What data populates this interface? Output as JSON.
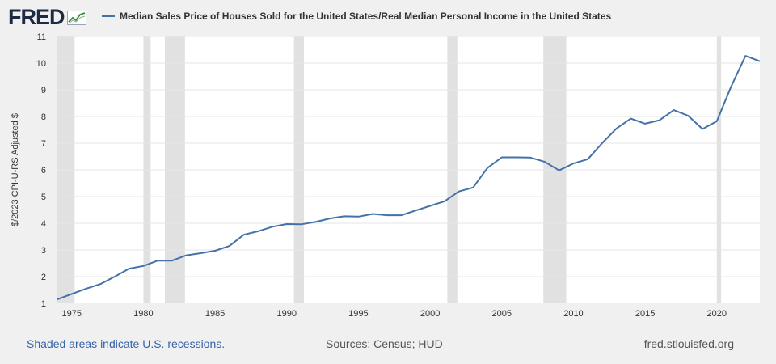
{
  "brand": {
    "logo_text": "FRED"
  },
  "footer": {
    "recession_note": "Shaded areas indicate U.S. recessions.",
    "sources": "Sources: Census; HUD",
    "site": "fred.stlouisfed.org"
  },
  "colors": {
    "line": "#4472a8",
    "recession": "#e1e1e1",
    "grid": "#e6e6e6",
    "background": "#ffffff"
  },
  "chart_data": {
    "type": "line",
    "title": "",
    "xlabel": "",
    "ylabel": "$/2023 CPI-U-RS Adjusted $",
    "xlim": [
      1974,
      2023
    ],
    "ylim": [
      1,
      11
    ],
    "x_ticks": [
      1975,
      1980,
      1985,
      1990,
      1995,
      2000,
      2005,
      2010,
      2015,
      2020
    ],
    "y_ticks": [
      1,
      2,
      3,
      4,
      5,
      6,
      7,
      8,
      9,
      10,
      11
    ],
    "grid": true,
    "legend_position": "top",
    "recessions": [
      [
        1973.9,
        1975.2
      ],
      [
        1980.0,
        1980.5
      ],
      [
        1981.5,
        1982.9
      ],
      [
        1990.5,
        1991.2
      ],
      [
        2001.2,
        2001.9
      ],
      [
        2007.9,
        2009.5
      ],
      [
        2020.0,
        2020.3
      ]
    ],
    "series": [
      {
        "name": "Median Sales Price of Houses Sold for the United States/Real Median Personal Income in the United States",
        "x": [
          1974,
          1975,
          1976,
          1977,
          1978,
          1979,
          1980,
          1981,
          1982,
          1983,
          1984,
          1985,
          1986,
          1987,
          1988,
          1989,
          1990,
          1991,
          1992,
          1993,
          1994,
          1995,
          1996,
          1997,
          1998,
          1999,
          2000,
          2001,
          2002,
          2003,
          2004,
          2005,
          2006,
          2007,
          2008,
          2009,
          2010,
          2011,
          2012,
          2013,
          2014,
          2015,
          2016,
          2017,
          2018,
          2019,
          2020,
          2021,
          2022,
          2023
        ],
        "values": [
          1.15,
          1.35,
          1.55,
          1.72,
          2.0,
          2.3,
          2.4,
          2.6,
          2.6,
          2.8,
          2.88,
          2.97,
          3.15,
          3.57,
          3.7,
          3.87,
          3.97,
          3.96,
          4.05,
          4.18,
          4.26,
          4.25,
          4.35,
          4.3,
          4.3,
          4.48,
          4.65,
          4.82,
          5.19,
          5.34,
          6.07,
          6.47,
          6.47,
          6.46,
          6.3,
          5.98,
          6.24,
          6.4,
          7.0,
          7.55,
          7.92,
          7.73,
          7.86,
          8.24,
          8.03,
          7.53,
          7.82,
          9.12,
          10.27,
          10.07
        ]
      }
    ]
  }
}
